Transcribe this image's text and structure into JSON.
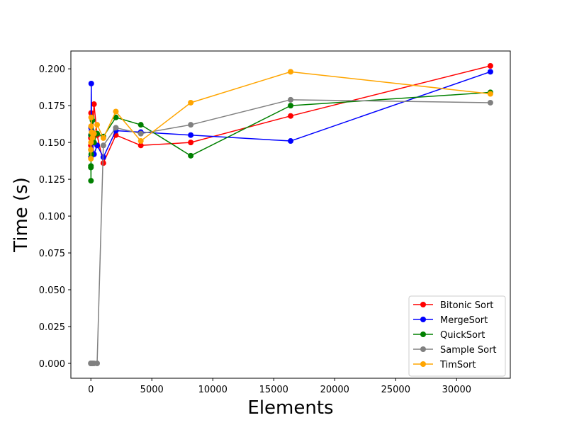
{
  "chart_data": {
    "type": "line",
    "xlabel": "Elements",
    "ylabel": "Time (s)",
    "xlim": [
      -1640,
      34400
    ],
    "ylim": [
      -0.0101,
      0.2121
    ],
    "x_ticks": [
      0,
      5000,
      10000,
      15000,
      20000,
      25000,
      30000
    ],
    "x_tick_labels": [
      "0",
      "5000",
      "10000",
      "15000",
      "20000",
      "25000",
      "30000"
    ],
    "y_ticks": [
      0.0,
      0.025,
      0.05,
      0.075,
      0.1,
      0.125,
      0.15,
      0.175,
      0.2
    ],
    "y_tick_labels": [
      "0.000",
      "0.025",
      "0.050",
      "0.075",
      "0.100",
      "0.125",
      "0.150",
      "0.175",
      "0.200"
    ],
    "grid": false,
    "legend_position": "bottom-right",
    "series": [
      {
        "name": "Bitonic Sort",
        "color": "#ff0000",
        "x": [
          2,
          4,
          8,
          16,
          32,
          64,
          128,
          256,
          512,
          1024,
          2048,
          4096,
          8192,
          16384,
          32768
        ],
        "y": [
          0.148,
          0.153,
          0.145,
          0.17,
          0.167,
          0.15,
          0.153,
          0.176,
          0.155,
          0.136,
          0.155,
          0.148,
          0.15,
          0.168,
          0.202
        ]
      },
      {
        "name": "MergeSort",
        "color": "#0000ff",
        "x": [
          2,
          4,
          8,
          16,
          32,
          64,
          128,
          256,
          512,
          1024,
          2048,
          4096,
          8192,
          16384,
          32768
        ],
        "y": [
          0.14,
          0.155,
          0.145,
          0.16,
          0.19,
          0.158,
          0.15,
          0.142,
          0.148,
          0.14,
          0.158,
          0.157,
          0.155,
          0.151,
          0.198
        ]
      },
      {
        "name": "QuickSort",
        "color": "#008000",
        "x": [
          2,
          4,
          8,
          16,
          32,
          64,
          128,
          256,
          512,
          1024,
          2048,
          4096,
          8192,
          16384,
          32768
        ],
        "y": [
          0.133,
          0.134,
          0.124,
          0.155,
          0.142,
          0.167,
          0.165,
          0.15,
          0.156,
          0.154,
          0.167,
          0.162,
          0.141,
          0.175,
          0.184
        ]
      },
      {
        "name": "Sample Sort",
        "color": "#808080",
        "x": [
          2,
          4,
          8,
          16,
          32,
          64,
          128,
          256,
          512,
          1024,
          2048,
          4096,
          8192,
          16384,
          32768
        ],
        "y": [
          0.0,
          0.0,
          0.0,
          0.0,
          0.0,
          0.0,
          0.0,
          0.0,
          0.0,
          0.148,
          0.16,
          0.156,
          0.162,
          0.179,
          0.177
        ]
      },
      {
        "name": "TimSort",
        "color": "#ffa500",
        "x": [
          2,
          4,
          8,
          16,
          32,
          64,
          128,
          256,
          512,
          1024,
          2048,
          4096,
          8192,
          16384,
          32768
        ],
        "y": [
          0.145,
          0.139,
          0.15,
          0.161,
          0.167,
          0.157,
          0.153,
          0.156,
          0.162,
          0.153,
          0.171,
          0.151,
          0.177,
          0.198,
          0.183
        ]
      }
    ]
  }
}
